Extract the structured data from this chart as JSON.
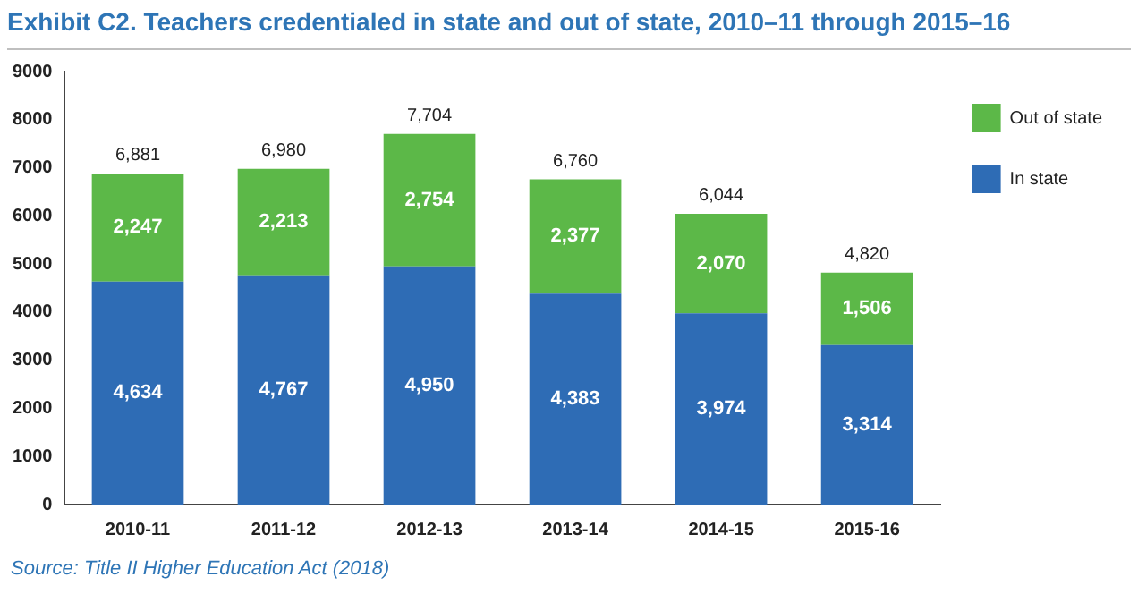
{
  "chart_data": {
    "type": "bar",
    "title": "Exhibit C2. Teachers credentialed in state and out of state, 2010–11 through 2015–16",
    "categories": [
      "2010-11",
      "2011-12",
      "2012-13",
      "2013-14",
      "2014-15",
      "2015-16"
    ],
    "stacked": true,
    "series": [
      {
        "name": "In state",
        "color": "#2e6cb5",
        "values": [
          4634,
          4767,
          4950,
          4383,
          3974,
          3314
        ],
        "value_labels": [
          "4,634",
          "4,767",
          "4,950",
          "4,383",
          "3,974",
          "3,314"
        ]
      },
      {
        "name": "Out of state",
        "color": "#5cb848",
        "values": [
          2247,
          2213,
          2754,
          2377,
          2070,
          1506
        ],
        "value_labels": [
          "2,247",
          "2,213",
          "2,754",
          "2,377",
          "2,070",
          "1,506"
        ]
      }
    ],
    "totals": [
      "6,881",
      "6,980",
      "7,704",
      "6,760",
      "6,044",
      "4,820"
    ],
    "ylim": [
      0,
      9000
    ],
    "yticks": [
      0,
      1000,
      2000,
      3000,
      4000,
      5000,
      6000,
      7000,
      8000,
      9000
    ],
    "grid": false,
    "legend": "top right",
    "annotations": [
      "Source: Title II Higher Education Act (2018)"
    ]
  }
}
